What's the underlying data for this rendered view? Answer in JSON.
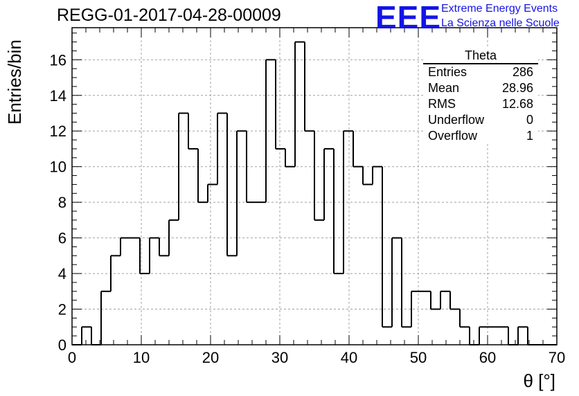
{
  "header": {
    "run_title": "REGG-01-2017-04-28-00009"
  },
  "logo": {
    "letters": "EEE",
    "line1": "Extreme Energy Events",
    "line2": "La Scienza nelle Scuole",
    "color": "#1414e6"
  },
  "stats_box": {
    "title": "Theta",
    "rows": [
      {
        "label": "Entries",
        "value": "286"
      },
      {
        "label": "Mean",
        "value": "28.96"
      },
      {
        "label": "RMS",
        "value": "12.68"
      },
      {
        "label": "Underflow",
        "value": "0"
      },
      {
        "label": "Overflow",
        "value": "1"
      }
    ]
  },
  "chart_data": {
    "type": "bar",
    "style": "step-histogram",
    "xlabel": "θ [°]",
    "ylabel": "Entries/bin",
    "xlim": [
      0,
      70
    ],
    "ylim": [
      0,
      17.8
    ],
    "grid": true,
    "bin_width": 1.4,
    "bin_lefts": [
      0,
      1.4,
      2.8,
      4.2,
      5.6,
      7.0,
      8.4,
      9.8,
      11.2,
      12.6,
      14.0,
      15.4,
      16.8,
      18.2,
      19.6,
      21.0,
      22.4,
      23.8,
      25.2,
      26.6,
      28.0,
      29.4,
      30.8,
      32.2,
      33.6,
      35.0,
      36.4,
      37.8,
      39.2,
      40.6,
      42.0,
      43.4,
      44.8,
      46.2,
      47.6,
      49.0,
      50.4,
      51.8,
      53.2,
      54.6,
      56.0,
      57.4,
      58.8,
      60.2,
      61.6,
      63.0,
      64.4,
      65.8,
      67.2,
      68.6
    ],
    "values": [
      0,
      1,
      0,
      3,
      5,
      6,
      6,
      4,
      6,
      5,
      7,
      13,
      11,
      8,
      9,
      13,
      5,
      12,
      8,
      8,
      16,
      11,
      10,
      17,
      12,
      7,
      11,
      4,
      12,
      10,
      9,
      10,
      1,
      6,
      1,
      3,
      3,
      2,
      3,
      2,
      1,
      0,
      1,
      1,
      1,
      0,
      1,
      0,
      0,
      0
    ],
    "x_ticks": [
      0,
      10,
      20,
      30,
      40,
      50,
      60,
      70
    ],
    "y_ticks": [
      0,
      2,
      4,
      6,
      8,
      10,
      12,
      14,
      16
    ]
  }
}
